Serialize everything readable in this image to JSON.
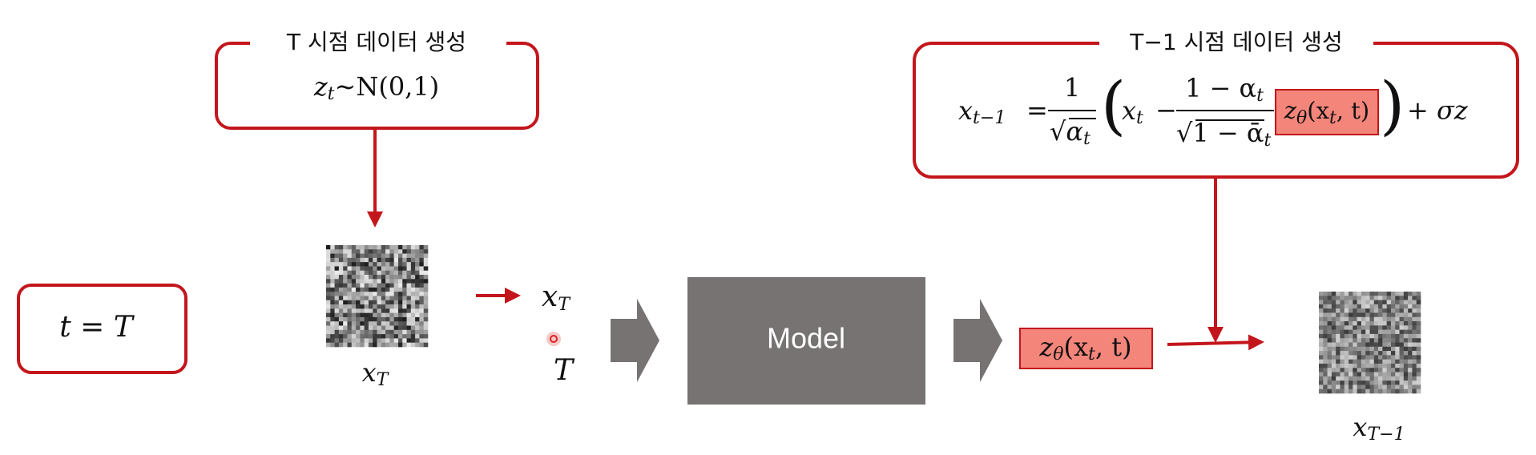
{
  "start_box": {
    "label": "t = T"
  },
  "init_box": {
    "title": "T 시점 데이터 생성",
    "formula": [
      "z",
      "t",
      "∼N(0,1)"
    ]
  },
  "input": {
    "image_label": [
      "x",
      "T"
    ],
    "state": [
      "x",
      "T"
    ],
    "time": "T"
  },
  "model": {
    "label": "Model"
  },
  "output": {
    "prediction": [
      "z",
      "θ",
      "(x",
      "t",
      ", t)"
    ],
    "image_label": [
      "x",
      "T−1"
    ]
  },
  "step_box": {
    "title": "T−1 시점 데이터 생성",
    "formula": {
      "lhs": [
        "x",
        "t−1"
      ],
      "eq": "=",
      "coef_num": "1",
      "coef_den": [
        "√",
        "α",
        "t"
      ],
      "open": "(",
      "x": [
        "x",
        "t"
      ],
      "minus": "−",
      "frac_num": [
        "1 − α",
        "t"
      ],
      "frac_den": [
        "√",
        "1 − ᾱ",
        "t"
      ],
      "noise": [
        "z",
        "θ",
        "(x",
        "t",
        ", t)"
      ],
      "close": ")",
      "tail": "+ σz"
    }
  }
}
